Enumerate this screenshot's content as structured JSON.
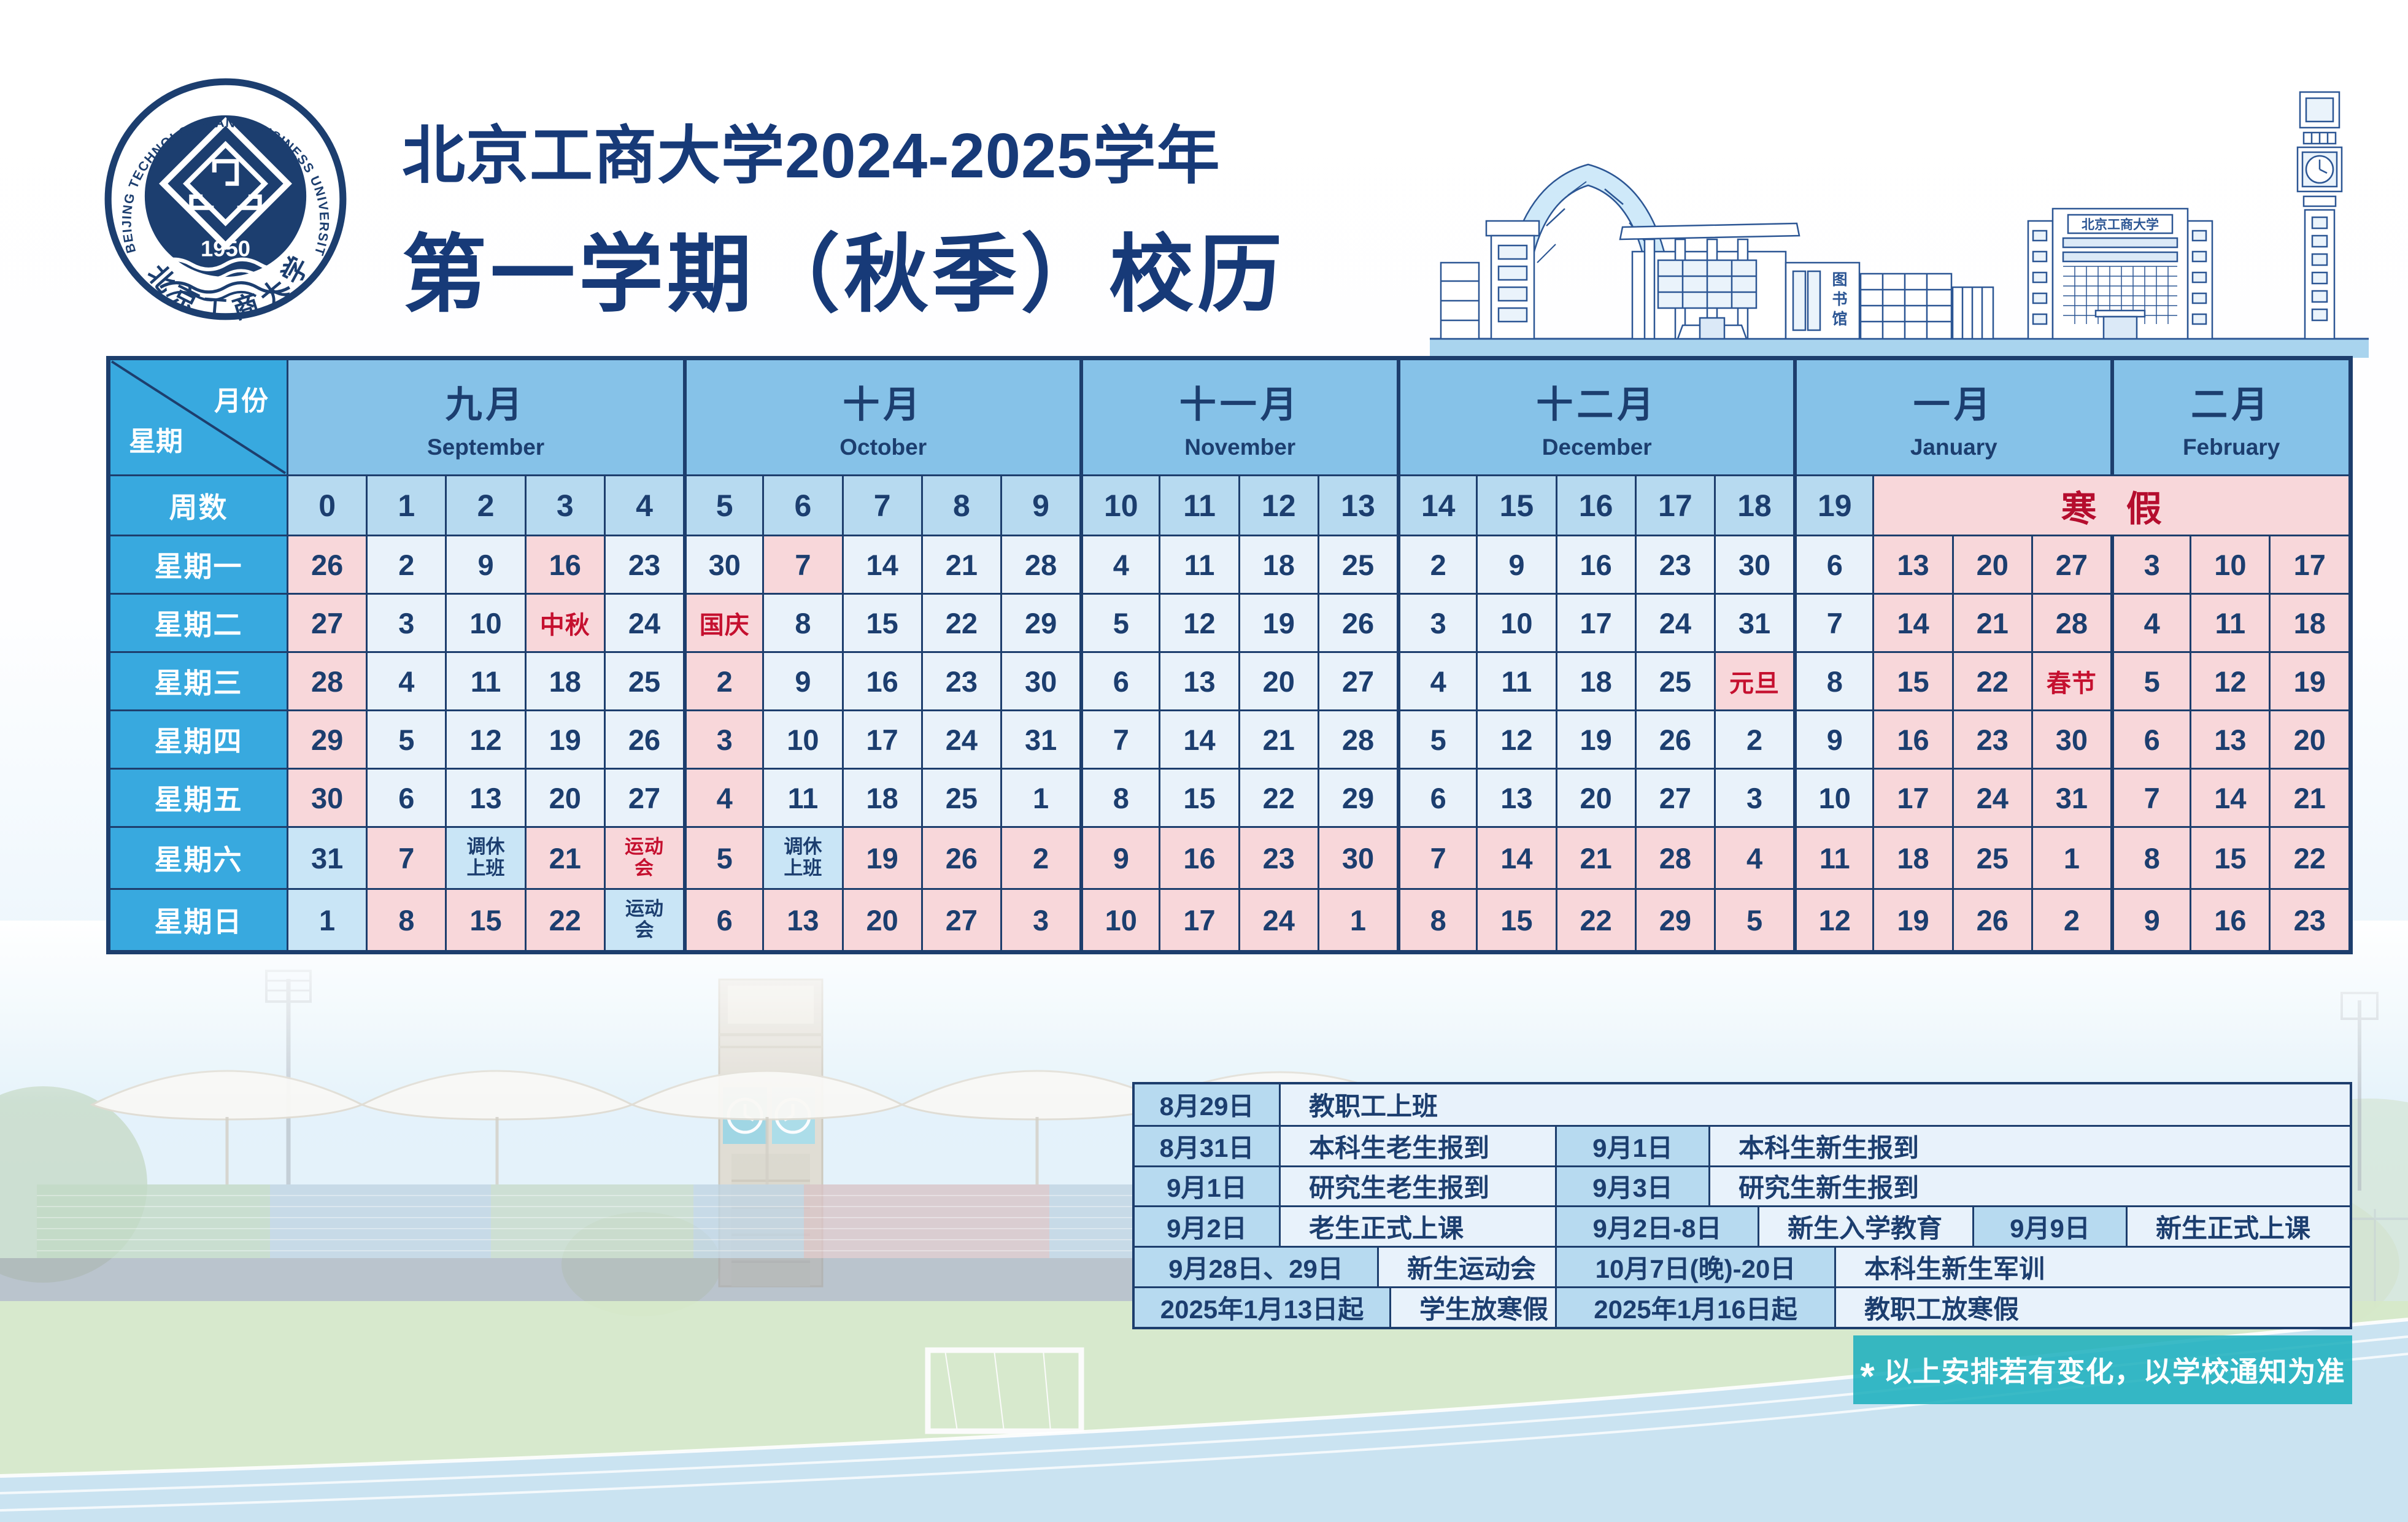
{
  "header": {
    "title_line1": "北京工商大学2024-2025学年",
    "title_line2": "第一学期（秋季）校历",
    "logo": {
      "ring_text": "BEIJING TECHNOLOGY AND BUSINESS UNIVERSITY",
      "year": "1950",
      "bottom_text": "北京工商大学"
    },
    "building_sign": "北京工商大学",
    "library_chars": [
      "图",
      "书",
      "馆"
    ]
  },
  "calendar": {
    "corner": {
      "top": "月份",
      "bottom": "星期"
    },
    "months": [
      {
        "zh": "九月",
        "en": "September",
        "cols": 5
      },
      {
        "zh": "十月",
        "en": "October",
        "cols": 5
      },
      {
        "zh": "十一月",
        "en": "November",
        "cols": 4
      },
      {
        "zh": "十二月",
        "en": "December",
        "cols": 5
      },
      {
        "zh": "一月",
        "en": "January",
        "cols": 4
      },
      {
        "zh": "二月",
        "en": "February",
        "cols": 3
      }
    ],
    "week_row_label": "周数",
    "week_numbers": [
      "0",
      "1",
      "2",
      "3",
      "4",
      "5",
      "6",
      "7",
      "8",
      "9",
      "10",
      "11",
      "12",
      "13",
      "14",
      "15",
      "16",
      "17",
      "18",
      "19"
    ],
    "winter_break_label": "寒 假",
    "rows": [
      {
        "label": "星期一",
        "cells": [
          [
            "26",
            "p"
          ],
          [
            "2",
            "n"
          ],
          [
            "9",
            "n"
          ],
          [
            "16",
            "p"
          ],
          [
            "23",
            "n"
          ],
          [
            "30",
            "n"
          ],
          [
            "7",
            "p"
          ],
          [
            "14",
            "n"
          ],
          [
            "21",
            "n"
          ],
          [
            "28",
            "n"
          ],
          [
            "4",
            "n"
          ],
          [
            "11",
            "n"
          ],
          [
            "18",
            "n"
          ],
          [
            "25",
            "n"
          ],
          [
            "2",
            "n"
          ],
          [
            "9",
            "n"
          ],
          [
            "16",
            "n"
          ],
          [
            "23",
            "n"
          ],
          [
            "30",
            "n"
          ],
          [
            "6",
            "n"
          ],
          [
            "13",
            "p"
          ],
          [
            "20",
            "p"
          ],
          [
            "27",
            "p"
          ],
          [
            "3",
            "p"
          ],
          [
            "10",
            "p"
          ],
          [
            "17",
            "p"
          ]
        ]
      },
      {
        "label": "星期二",
        "cells": [
          [
            "27",
            "p"
          ],
          [
            "3",
            "n"
          ],
          [
            "10",
            "n"
          ],
          [
            "中秋",
            "pr"
          ],
          [
            "24",
            "n"
          ],
          [
            "国庆",
            "pr"
          ],
          [
            "8",
            "n"
          ],
          [
            "15",
            "n"
          ],
          [
            "22",
            "n"
          ],
          [
            "29",
            "n"
          ],
          [
            "5",
            "n"
          ],
          [
            "12",
            "n"
          ],
          [
            "19",
            "n"
          ],
          [
            "26",
            "n"
          ],
          [
            "3",
            "n"
          ],
          [
            "10",
            "n"
          ],
          [
            "17",
            "n"
          ],
          [
            "24",
            "n"
          ],
          [
            "31",
            "n"
          ],
          [
            "7",
            "n"
          ],
          [
            "14",
            "p"
          ],
          [
            "21",
            "p"
          ],
          [
            "28",
            "p"
          ],
          [
            "4",
            "p"
          ],
          [
            "11",
            "p"
          ],
          [
            "18",
            "p"
          ]
        ]
      },
      {
        "label": "星期三",
        "cells": [
          [
            "28",
            "p"
          ],
          [
            "4",
            "n"
          ],
          [
            "11",
            "n"
          ],
          [
            "18",
            "n"
          ],
          [
            "25",
            "n"
          ],
          [
            "2",
            "p"
          ],
          [
            "9",
            "n"
          ],
          [
            "16",
            "n"
          ],
          [
            "23",
            "n"
          ],
          [
            "30",
            "n"
          ],
          [
            "6",
            "n"
          ],
          [
            "13",
            "n"
          ],
          [
            "20",
            "n"
          ],
          [
            "27",
            "n"
          ],
          [
            "4",
            "n"
          ],
          [
            "11",
            "n"
          ],
          [
            "18",
            "n"
          ],
          [
            "25",
            "n"
          ],
          [
            "元旦",
            "pr"
          ],
          [
            "8",
            "n"
          ],
          [
            "15",
            "p"
          ],
          [
            "22",
            "p"
          ],
          [
            "春节",
            "pr"
          ],
          [
            "5",
            "p"
          ],
          [
            "12",
            "p"
          ],
          [
            "19",
            "p"
          ]
        ]
      },
      {
        "label": "星期四",
        "cells": [
          [
            "29",
            "p"
          ],
          [
            "5",
            "n"
          ],
          [
            "12",
            "n"
          ],
          [
            "19",
            "n"
          ],
          [
            "26",
            "n"
          ],
          [
            "3",
            "p"
          ],
          [
            "10",
            "n"
          ],
          [
            "17",
            "n"
          ],
          [
            "24",
            "n"
          ],
          [
            "31",
            "n"
          ],
          [
            "7",
            "n"
          ],
          [
            "14",
            "n"
          ],
          [
            "21",
            "n"
          ],
          [
            "28",
            "n"
          ],
          [
            "5",
            "n"
          ],
          [
            "12",
            "n"
          ],
          [
            "19",
            "n"
          ],
          [
            "26",
            "n"
          ],
          [
            "2",
            "n"
          ],
          [
            "9",
            "n"
          ],
          [
            "16",
            "p"
          ],
          [
            "23",
            "p"
          ],
          [
            "30",
            "p"
          ],
          [
            "6",
            "p"
          ],
          [
            "13",
            "p"
          ],
          [
            "20",
            "p"
          ]
        ]
      },
      {
        "label": "星期五",
        "cells": [
          [
            "30",
            "p"
          ],
          [
            "6",
            "n"
          ],
          [
            "13",
            "n"
          ],
          [
            "20",
            "n"
          ],
          [
            "27",
            "n"
          ],
          [
            "4",
            "p"
          ],
          [
            "11",
            "n"
          ],
          [
            "18",
            "n"
          ],
          [
            "25",
            "n"
          ],
          [
            "1",
            "n"
          ],
          [
            "8",
            "n"
          ],
          [
            "15",
            "n"
          ],
          [
            "22",
            "n"
          ],
          [
            "29",
            "n"
          ],
          [
            "6",
            "n"
          ],
          [
            "13",
            "n"
          ],
          [
            "20",
            "n"
          ],
          [
            "27",
            "n"
          ],
          [
            "3",
            "n"
          ],
          [
            "10",
            "n"
          ],
          [
            "17",
            "p"
          ],
          [
            "24",
            "p"
          ],
          [
            "31",
            "p"
          ],
          [
            "7",
            "p"
          ],
          [
            "14",
            "p"
          ],
          [
            "21",
            "p"
          ]
        ]
      },
      {
        "label": "星期六",
        "cells": [
          [
            "31",
            "b"
          ],
          [
            "7",
            "p"
          ],
          [
            "调休\n上班",
            "bs"
          ],
          [
            "21",
            "p"
          ],
          [
            "运动\n会",
            "prs"
          ],
          [
            "5",
            "p"
          ],
          [
            "调休\n上班",
            "bs"
          ],
          [
            "19",
            "p"
          ],
          [
            "26",
            "p"
          ],
          [
            "2",
            "p"
          ],
          [
            "9",
            "p"
          ],
          [
            "16",
            "p"
          ],
          [
            "23",
            "p"
          ],
          [
            "30",
            "p"
          ],
          [
            "7",
            "p"
          ],
          [
            "14",
            "p"
          ],
          [
            "21",
            "p"
          ],
          [
            "28",
            "p"
          ],
          [
            "4",
            "p"
          ],
          [
            "11",
            "p"
          ],
          [
            "18",
            "p"
          ],
          [
            "25",
            "p"
          ],
          [
            "1",
            "p"
          ],
          [
            "8",
            "p"
          ],
          [
            "15",
            "p"
          ],
          [
            "22",
            "p"
          ]
        ]
      },
      {
        "label": "星期日",
        "cells": [
          [
            "1",
            "b"
          ],
          [
            "8",
            "p"
          ],
          [
            "15",
            "p"
          ],
          [
            "22",
            "p"
          ],
          [
            "运动\n会",
            "bs"
          ],
          [
            "6",
            "p"
          ],
          [
            "13",
            "p"
          ],
          [
            "20",
            "p"
          ],
          [
            "27",
            "p"
          ],
          [
            "3",
            "p"
          ],
          [
            "10",
            "p"
          ],
          [
            "17",
            "p"
          ],
          [
            "24",
            "p"
          ],
          [
            "1",
            "p"
          ],
          [
            "8",
            "p"
          ],
          [
            "15",
            "p"
          ],
          [
            "22",
            "p"
          ],
          [
            "29",
            "p"
          ],
          [
            "5",
            "p"
          ],
          [
            "12",
            "p"
          ],
          [
            "19",
            "p"
          ],
          [
            "26",
            "p"
          ],
          [
            "2",
            "p"
          ],
          [
            "9",
            "p"
          ],
          [
            "16",
            "p"
          ],
          [
            "23",
            "p"
          ]
        ]
      }
    ]
  },
  "schedule": {
    "rows": [
      [
        "8月29日",
        "教职工上班"
      ],
      [
        "8月31日",
        "本科生老生报到",
        "9月1日",
        "本科生新生报到"
      ],
      [
        "9月1日",
        "研究生老生报到",
        "9月3日",
        "研究生新生报到"
      ],
      [
        "9月2日",
        "老生正式上课",
        "9月2日-8日",
        "新生入学教育",
        "9月9日",
        "新生正式上课"
      ],
      [
        "9月28日、29日",
        "新生运动会",
        "10月7日(晚)-20日",
        "本科生新生军训"
      ],
      [
        "2025年1月13日起",
        "学生放寒假",
        "2025年1月16日起",
        "教职工放寒假"
      ]
    ]
  },
  "footnote": {
    "star": "*",
    "text": "以上安排若有变化，以学校通知为准"
  },
  "colors": {
    "navy": "#1c3e6f",
    "bright_blue": "#38a9df",
    "month_blue": "#86c2e8",
    "week_row_blue": "#b7daf0",
    "cell_blue": "#e9f2fa",
    "holiday_pink": "#f8d7da",
    "special_blue": "#c9e5f6",
    "holiday_red": "#c5102f",
    "winter_red": "#b50d2e",
    "footnote_teal": "#1eb0be"
  }
}
